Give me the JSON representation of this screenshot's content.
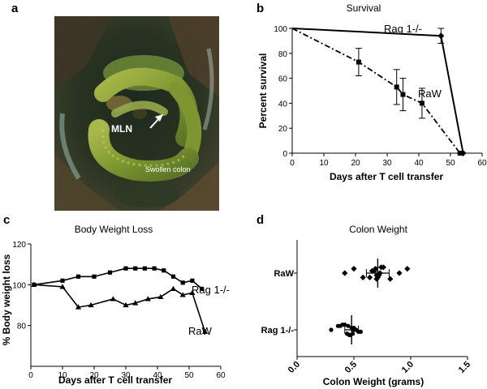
{
  "panels": {
    "a": {
      "letter": "a",
      "mln_label": "MLN",
      "colon_label": "Swollen colon"
    },
    "b": {
      "letter": "b"
    },
    "c": {
      "letter": "c"
    },
    "d": {
      "letter": "d"
    }
  },
  "chart_data": [
    {
      "id": "survival",
      "type": "line",
      "title": "Survival",
      "xlabel": "Days after T cell transfer",
      "ylabel": "Percent survival",
      "xlim": [
        0,
        60
      ],
      "ylim": [
        0,
        100
      ],
      "xticks": [
        0,
        10,
        20,
        30,
        40,
        50,
        60
      ],
      "yticks": [
        0,
        20,
        40,
        60,
        80,
        100
      ],
      "series": [
        {
          "name": "Rag 1-/-",
          "style": "solid",
          "marker": "diamond",
          "color": "#000000",
          "points": [
            {
              "x": 0,
              "y": 100
            },
            {
              "x": 47,
              "y": 94,
              "err": 6
            },
            {
              "x": 54,
              "y": 0
            }
          ]
        },
        {
          "name": "RaW",
          "style": "dash-dot",
          "marker": "square",
          "color": "#000000",
          "points": [
            {
              "x": 0,
              "y": 100
            },
            {
              "x": 21,
              "y": 73,
              "err": 11
            },
            {
              "x": 33,
              "y": 53,
              "err": 14
            },
            {
              "x": 35,
              "y": 47,
              "err": 13
            },
            {
              "x": 41,
              "y": 40,
              "err": 12
            },
            {
              "x": 53,
              "y": 0
            }
          ]
        }
      ]
    },
    {
      "id": "body_weight",
      "type": "line",
      "title": "Body Weight Loss",
      "xlabel": "Days after T cell transfer",
      "ylabel": "% Body weight loss",
      "xlim": [
        0,
        60
      ],
      "ylim": [
        60,
        120
      ],
      "xticks": [
        0,
        10,
        20,
        30,
        40,
        50,
        60
      ],
      "yticks": [
        80,
        100,
        120
      ],
      "series": [
        {
          "name": "Rag 1-/-",
          "marker": "square",
          "color": "#000000",
          "points": [
            {
              "x": 1,
              "y": 100
            },
            {
              "x": 10,
              "y": 102
            },
            {
              "x": 15,
              "y": 104
            },
            {
              "x": 20,
              "y": 104
            },
            {
              "x": 25,
              "y": 106
            },
            {
              "x": 30,
              "y": 108
            },
            {
              "x": 33,
              "y": 108
            },
            {
              "x": 36,
              "y": 108
            },
            {
              "x": 39,
              "y": 108
            },
            {
              "x": 42,
              "y": 107
            },
            {
              "x": 45,
              "y": 104
            },
            {
              "x": 48,
              "y": 101
            },
            {
              "x": 51,
              "y": 102
            },
            {
              "x": 54,
              "y": 98
            }
          ]
        },
        {
          "name": "RaW",
          "marker": "triangle",
          "color": "#000000",
          "points": [
            {
              "x": 1,
              "y": 100
            },
            {
              "x": 10,
              "y": 99
            },
            {
              "x": 15,
              "y": 89
            },
            {
              "x": 19,
              "y": 90
            },
            {
              "x": 26,
              "y": 93
            },
            {
              "x": 30,
              "y": 90
            },
            {
              "x": 33,
              "y": 91
            },
            {
              "x": 37,
              "y": 93
            },
            {
              "x": 41,
              "y": 94
            },
            {
              "x": 45,
              "y": 98
            },
            {
              "x": 48,
              "y": 95
            },
            {
              "x": 51,
              "y": 96
            },
            {
              "x": 55,
              "y": 77
            }
          ]
        }
      ]
    },
    {
      "id": "colon_weight",
      "type": "scatter",
      "title": "Colon Weight",
      "xlabel": "Colon Weight (grams)",
      "ylabel": "",
      "xlim": [
        0,
        1.5
      ],
      "xticks": [
        0.0,
        0.5,
        1.0,
        1.5
      ],
      "xtick_labels": [
        "0.0",
        "0.5",
        "1.0",
        "1.5"
      ],
      "categories": [
        "RaW",
        "Rag 1-/-"
      ],
      "series": [
        {
          "name": "RaW",
          "marker": "diamond",
          "mean": 0.71,
          "err": 0.1,
          "values": [
            0.42,
            0.5,
            0.58,
            0.66,
            0.7,
            0.74,
            0.82,
            0.9,
            0.97,
            0.64,
            0.68,
            0.72,
            0.76,
            0.7,
            0.73,
            0.69,
            0.71
          ]
        },
        {
          "name": "Rag 1-/-",
          "marker": "circle",
          "mean": 0.48,
          "err": 0.06,
          "values": [
            0.3,
            0.36,
            0.44,
            0.5,
            0.56,
            0.4,
            0.46,
            0.52,
            0.38,
            0.44,
            0.48,
            0.54,
            0.42,
            0.47,
            0.5,
            0.45,
            0.49
          ]
        }
      ]
    }
  ]
}
